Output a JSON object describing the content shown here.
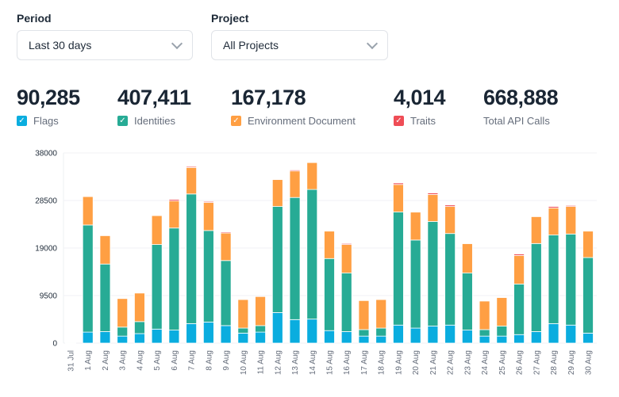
{
  "filters": {
    "period": {
      "label": "Period",
      "value": "Last 30 days"
    },
    "project": {
      "label": "Project",
      "value": "All Projects"
    }
  },
  "stats": [
    {
      "value": "90,285",
      "label": "Flags",
      "color": "#0aaddf",
      "checked": true
    },
    {
      "value": "407,411",
      "label": "Identities",
      "color": "#27ab95",
      "checked": true
    },
    {
      "value": "167,178",
      "label": "Environment Document",
      "color": "#ff9f43",
      "checked": true
    },
    {
      "value": "4,014",
      "label": "Traits",
      "color": "#ef4d56",
      "checked": true
    },
    {
      "value": "668,888",
      "label": "Total API Calls"
    }
  ],
  "chart_data": {
    "type": "bar",
    "stacked": true,
    "grid": true,
    "ylim": [
      0,
      38000
    ],
    "yticks": [
      "0",
      "9500",
      "19000",
      "28500",
      "38000"
    ],
    "categories": [
      "31 Jul",
      "1 Aug",
      "2 Aug",
      "3 Aug",
      "4 Aug",
      "5 Aug",
      "6 Aug",
      "7 Aug",
      "8 Aug",
      "9 Aug",
      "10 Aug",
      "11 Aug",
      "12 Aug",
      "13 Aug",
      "14 Aug",
      "15 Aug",
      "16 Aug",
      "17 Aug",
      "18 Aug",
      "19 Aug",
      "20 Aug",
      "21 Aug",
      "22 Aug",
      "23 Aug",
      "24 Aug",
      "25 Aug",
      "26 Aug",
      "27 Aug",
      "28 Aug",
      "29 Aug",
      "30 Aug"
    ],
    "series": [
      {
        "name": "Flags",
        "color": "#0aaddf",
        "values": [
          100,
          2200,
          2300,
          1400,
          1900,
          2800,
          2600,
          3900,
          4200,
          3500,
          2000,
          2200,
          6100,
          4700,
          4800,
          2500,
          2300,
          1400,
          1400,
          3600,
          3000,
          3400,
          3600,
          2600,
          1400,
          1400,
          1700,
          2300,
          3900,
          3600,
          2000
        ]
      },
      {
        "name": "Identities",
        "color": "#27ab95",
        "values": [
          100,
          21400,
          13500,
          1800,
          2400,
          16900,
          20400,
          25900,
          18300,
          13000,
          1000,
          1300,
          21200,
          24400,
          25900,
          14400,
          11700,
          1300,
          1600,
          22600,
          17600,
          20900,
          18300,
          11400,
          1300,
          2000,
          10100,
          17600,
          17700,
          18200,
          15100
        ]
      },
      {
        "name": "Environment Document",
        "color": "#ff9f43",
        "values": [
          0,
          5700,
          5700,
          5700,
          5700,
          5800,
          5400,
          5300,
          5600,
          5500,
          5700,
          5800,
          5400,
          5300,
          5400,
          5500,
          5700,
          5800,
          5700,
          5500,
          5600,
          5400,
          5400,
          5900,
          5700,
          5700,
          5700,
          5400,
          5400,
          5500,
          5300
        ]
      },
      {
        "name": "Traits",
        "color": "#ef4d56",
        "values": [
          0,
          100,
          100,
          0,
          0,
          100,
          300,
          200,
          200,
          200,
          0,
          0,
          100,
          200,
          100,
          100,
          200,
          0,
          0,
          300,
          100,
          300,
          300,
          100,
          0,
          0,
          300,
          100,
          300,
          200,
          100
        ]
      }
    ]
  }
}
